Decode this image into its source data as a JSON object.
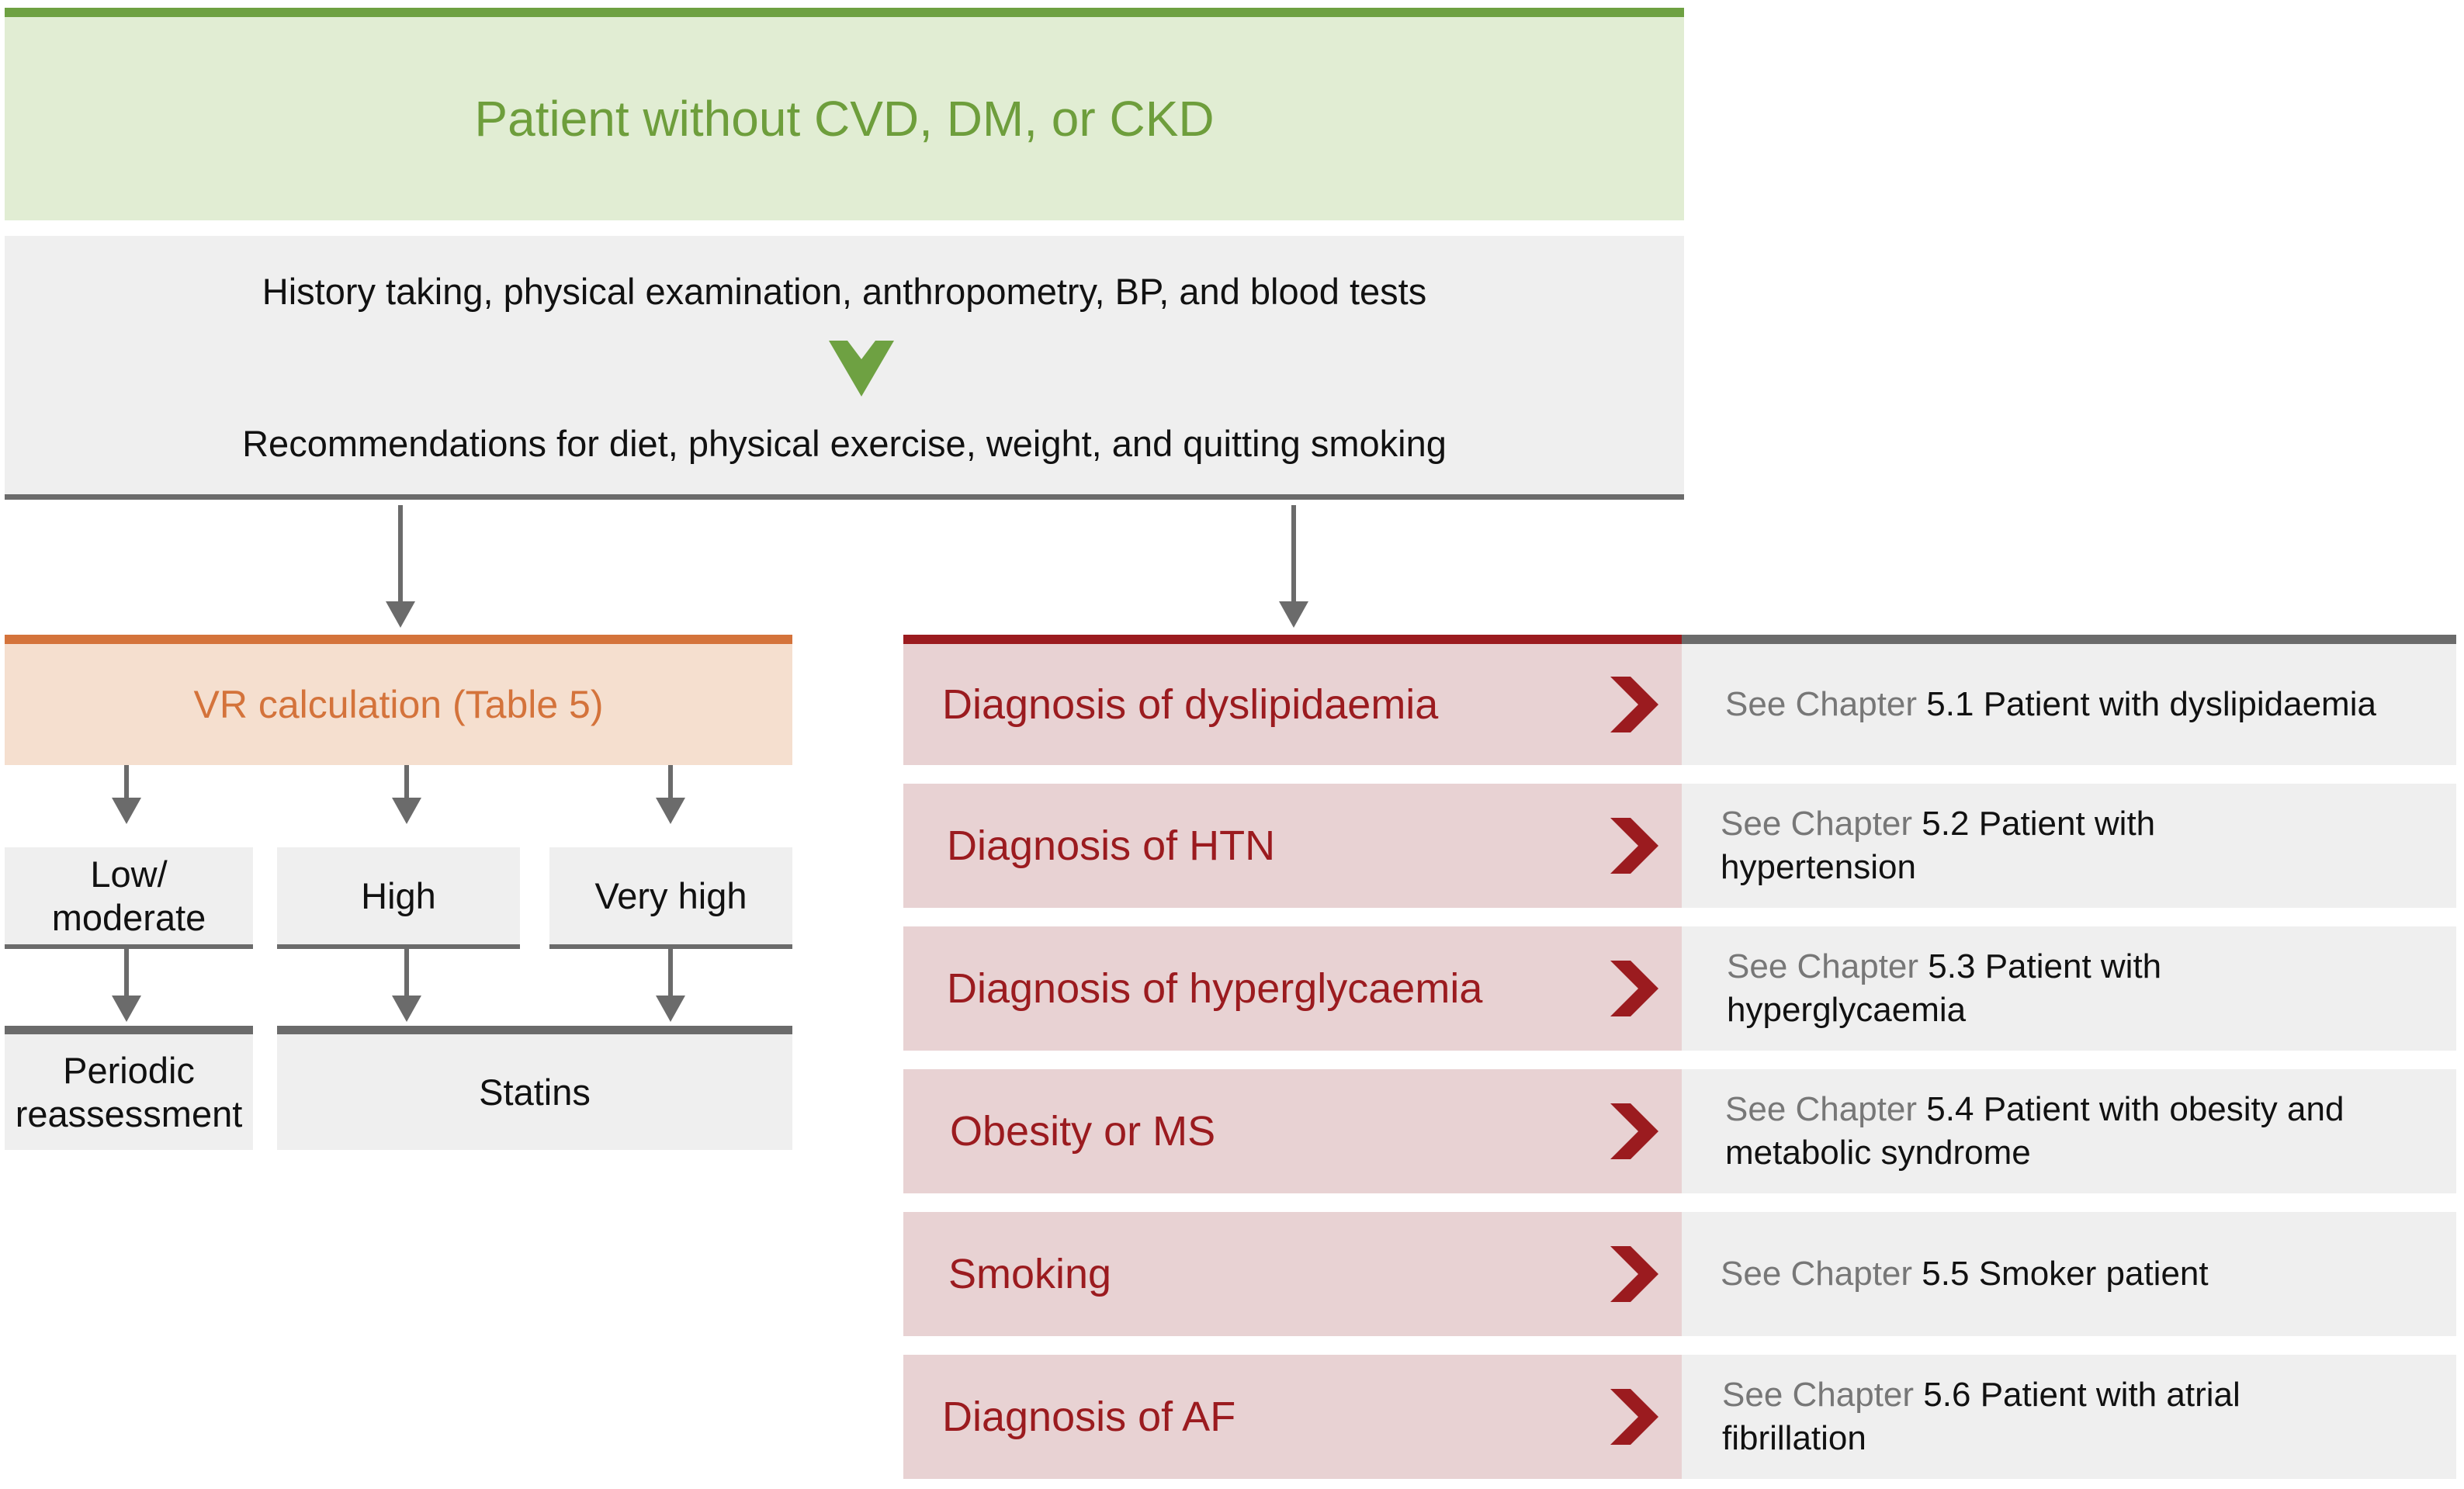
{
  "title": "Patient without CVD, DM, or CKD",
  "assessment": {
    "line1": "History taking, physical examination, anthropometry, BP, and blood tests",
    "line2": "Recommendations for diet, physical exercise, weight, and quitting smoking"
  },
  "vr": {
    "label": "VR calculation (Table 5)",
    "levels": [
      {
        "line1": "Low/",
        "line2": "moderate"
      },
      {
        "line1": "High"
      },
      {
        "line1": "Very high"
      }
    ],
    "outcomes": [
      {
        "line1": "Periodic",
        "line2": "reassessment"
      },
      {
        "line1": "Statins"
      }
    ]
  },
  "diagnoses": [
    {
      "label": "Diagnosis of dyslipidaemia",
      "see": "See Chapter",
      "chapter_line1": "5.1 Patient with dyslipidaemia",
      "chapter_line2": ""
    },
    {
      "label": "Diagnosis of HTN",
      "see": "See Chapter",
      "chapter_line1": "5.2 Patient with",
      "chapter_line2": "hypertension"
    },
    {
      "label": "Diagnosis of hyperglycaemia",
      "see": "See Chapter",
      "chapter_line1": "5.3 Patient with",
      "chapter_line2": "hyperglycaemia"
    },
    {
      "label": "Obesity or MS",
      "see": "See Chapter",
      "chapter_line1": "5.4 Patient with obesity and",
      "chapter_line2": "metabolic syndrome"
    },
    {
      "label": "Smoking",
      "see": "See Chapter",
      "chapter_line1": "5.5 Smoker patient",
      "chapter_line2": ""
    },
    {
      "label": "Diagnosis of AF",
      "see": "See Chapter",
      "chapter_line1": "5.6 Patient with atrial",
      "chapter_line2": "fibrillation"
    }
  ],
  "colors": {
    "green": "#6ea142",
    "orange": "#d4733b",
    "red": "#9b1b1f",
    "gray": "#6b6b6b"
  }
}
